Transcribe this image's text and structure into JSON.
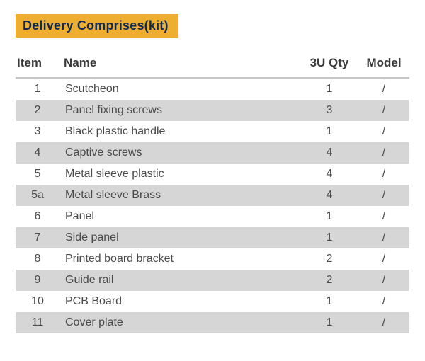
{
  "title": {
    "text": "Delivery Comprises(kit)",
    "bg_color": "#eeaf30",
    "text_color": "#0f2a57"
  },
  "table": {
    "header_border_color": "#c8c8c8",
    "zebra_colors": {
      "odd": "#ffffff",
      "even": "#d6d6d6"
    },
    "columns": [
      {
        "key": "item",
        "label": "Item",
        "align": "center"
      },
      {
        "key": "name",
        "label": "Name",
        "align": "left"
      },
      {
        "key": "qty",
        "label": "3U Qty",
        "align": "center"
      },
      {
        "key": "model",
        "label": "Model",
        "align": "center"
      }
    ],
    "rows": [
      {
        "item": "1",
        "name": "Scutcheon",
        "qty": "1",
        "model": "/"
      },
      {
        "item": "2",
        "name": "Panel fixing screws",
        "qty": "3",
        "model": "/"
      },
      {
        "item": "3",
        "name": "Black plastic handle",
        "qty": "1",
        "model": "/"
      },
      {
        "item": "4",
        "name": "Captive screws",
        "qty": "4",
        "model": "/"
      },
      {
        "item": "5",
        "name": "Metal sleeve plastic",
        "qty": "4",
        "model": "/"
      },
      {
        "item": "5a",
        "name": "Metal sleeve Brass",
        "qty": "4",
        "model": "/"
      },
      {
        "item": "6",
        "name": "Panel",
        "qty": "1",
        "model": "/"
      },
      {
        "item": "7",
        "name": "Side panel",
        "qty": "1",
        "model": "/"
      },
      {
        "item": "8",
        "name": "Printed board bracket",
        "qty": "2",
        "model": "/"
      },
      {
        "item": "9",
        "name": "Guide rail",
        "qty": "2",
        "model": "/"
      },
      {
        "item": "10",
        "name": "PCB Board",
        "qty": "1",
        "model": "/"
      },
      {
        "item": "11",
        "name": "Cover plate",
        "qty": "1",
        "model": "/"
      }
    ]
  }
}
